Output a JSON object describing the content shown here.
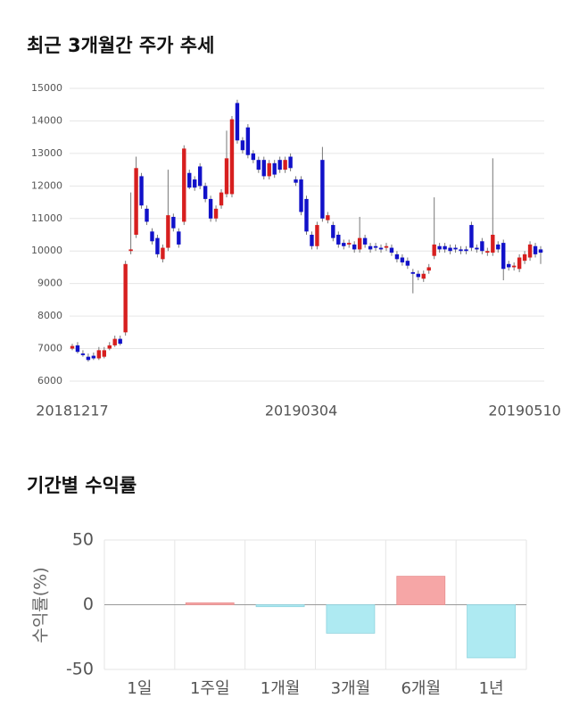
{
  "chart_data": [
    {
      "type": "candlestick",
      "title": "최근 3개월간 주가 추세",
      "categories": [
        "20181217",
        null,
        null,
        null,
        null,
        null,
        null,
        null,
        null,
        null,
        null,
        null,
        null,
        null,
        null,
        null,
        null,
        null,
        null,
        null,
        null,
        null,
        null,
        null,
        null,
        null,
        null,
        null,
        null,
        null,
        null,
        null,
        null,
        null,
        null,
        null,
        null,
        null,
        null,
        null,
        null,
        null,
        null,
        "20190304",
        null,
        null,
        null,
        null,
        null,
        null,
        null,
        null,
        null,
        null,
        null,
        null,
        null,
        null,
        null,
        null,
        null,
        null,
        null,
        null,
        null,
        null,
        null,
        null,
        null,
        null,
        null,
        null,
        null,
        null,
        null,
        null,
        null,
        null,
        null,
        null,
        null,
        null,
        null,
        null,
        null,
        "20190510",
        null,
        null,
        null
      ],
      "open": [
        7000,
        7100,
        6850,
        6750,
        6780,
        6700,
        6750,
        7000,
        7100,
        7300,
        7500,
        10000,
        10500,
        12300,
        11300,
        10600,
        10400,
        9750,
        10100,
        11050,
        10600,
        10900,
        12400,
        12200,
        12600,
        12000,
        11600,
        11000,
        11400,
        11750,
        11750,
        14550,
        13400,
        13800,
        13000,
        12800,
        12800,
        12300,
        12700,
        12800,
        12500,
        12900,
        12200,
        12200,
        11600,
        10500,
        10150,
        12800,
        10950,
        10800,
        10500,
        10250,
        10200,
        10200,
        10050,
        10400,
        10150,
        10150,
        10100,
        10100,
        10100,
        9900,
        9800,
        9700,
        9350,
        9300,
        9150,
        9400,
        9850,
        10150,
        10150,
        10100,
        10100,
        10050,
        10050,
        10800,
        10100,
        10300,
        9950,
        9950,
        10200,
        10250,
        9600,
        9500,
        9450,
        9700,
        9800,
        10150,
        10050
      ],
      "high": [
        7150,
        7200,
        6950,
        6850,
        6880,
        7050,
        7050,
        7200,
        7400,
        7400,
        9700,
        11800,
        12900,
        12400,
        11400,
        10700,
        10500,
        10200,
        12500,
        11150,
        10700,
        13250,
        12500,
        12300,
        12700,
        12100,
        11700,
        11400,
        11900,
        13700,
        14150,
        14650,
        13500,
        13900,
        13100,
        12900,
        12900,
        12800,
        12800,
        12900,
        12900,
        13000,
        12300,
        12300,
        11700,
        10600,
        10900,
        13200,
        11200,
        10900,
        10600,
        10350,
        10350,
        10300,
        11050,
        10500,
        10250,
        10250,
        10200,
        10250,
        10200,
        10000,
        9900,
        9800,
        9450,
        9400,
        9400,
        9600,
        11650,
        10250,
        10250,
        10200,
        10200,
        10150,
        10150,
        10900,
        10200,
        10400,
        10100,
        12850,
        10300,
        10350,
        9700,
        9650,
        9900,
        10000,
        10300,
        10250,
        10150
      ],
      "low": [
        6950,
        6850,
        6750,
        6600,
        6650,
        6650,
        6700,
        6950,
        7050,
        7100,
        7400,
        9900,
        10400,
        11300,
        10800,
        10200,
        9800,
        9650,
        10000,
        10600,
        10100,
        10800,
        11900,
        11850,
        11900,
        11500,
        10900,
        10900,
        11300,
        11650,
        11650,
        13300,
        13000,
        12850,
        12700,
        12400,
        12200,
        12200,
        12250,
        12400,
        12400,
        12450,
        12000,
        11100,
        10500,
        10050,
        10050,
        10900,
        10850,
        10300,
        10100,
        10050,
        10100,
        9950,
        9950,
        10100,
        9950,
        10000,
        9950,
        10000,
        9850,
        9650,
        9550,
        9450,
        8700,
        9100,
        9050,
        9300,
        9750,
        9950,
        9950,
        9900,
        9950,
        9900,
        9900,
        10000,
        9950,
        9900,
        9850,
        9850,
        9950,
        9100,
        9400,
        9400,
        9350,
        9600,
        9700,
        9800,
        9600
      ],
      "close": [
        7080,
        6900,
        6800,
        6650,
        6700,
        6950,
        6950,
        7100,
        7300,
        7150,
        9600,
        10050,
        12550,
        11400,
        10900,
        10300,
        9900,
        10100,
        11100,
        10700,
        10200,
        13150,
        11950,
        11950,
        12000,
        11600,
        11000,
        11300,
        11800,
        12850,
        14050,
        13400,
        13100,
        12950,
        12800,
        12500,
        12300,
        12700,
        12350,
        12500,
        12800,
        12550,
        12100,
        11200,
        10600,
        10150,
        10800,
        11000,
        11100,
        10400,
        10200,
        10150,
        10250,
        10050,
        10400,
        10200,
        10050,
        10100,
        10050,
        10150,
        9950,
        9750,
        9650,
        9550,
        9300,
        9200,
        9300,
        9500,
        10200,
        10050,
        10050,
        10000,
        10050,
        10000,
        10000,
        10100,
        10050,
        10000,
        10000,
        10500,
        10050,
        9450,
        9500,
        9550,
        9800,
        9900,
        10200,
        9900,
        9950
      ],
      "up_color": "#d71f1f",
      "down_color": "#1111c9",
      "ylim": [
        6000,
        15000
      ],
      "yticks": [
        6000,
        7000,
        8000,
        9000,
        10000,
        11000,
        12000,
        13000,
        14000,
        15000
      ],
      "grid": true
    },
    {
      "type": "bar",
      "title": "기간별 수익률",
      "ylabel": "수익률(%)",
      "categories": [
        "1일",
        "1주일",
        "1개월",
        "3개월",
        "6개월",
        "1년"
      ],
      "values": [
        0,
        1.5,
        -1.5,
        -22,
        22,
        -41
      ],
      "positive_color": "#f6a6a6",
      "negative_color": "#aeeaf2",
      "ylim": [
        -50,
        50
      ],
      "yticks": [
        -50,
        0,
        50
      ],
      "grid": true
    }
  ]
}
